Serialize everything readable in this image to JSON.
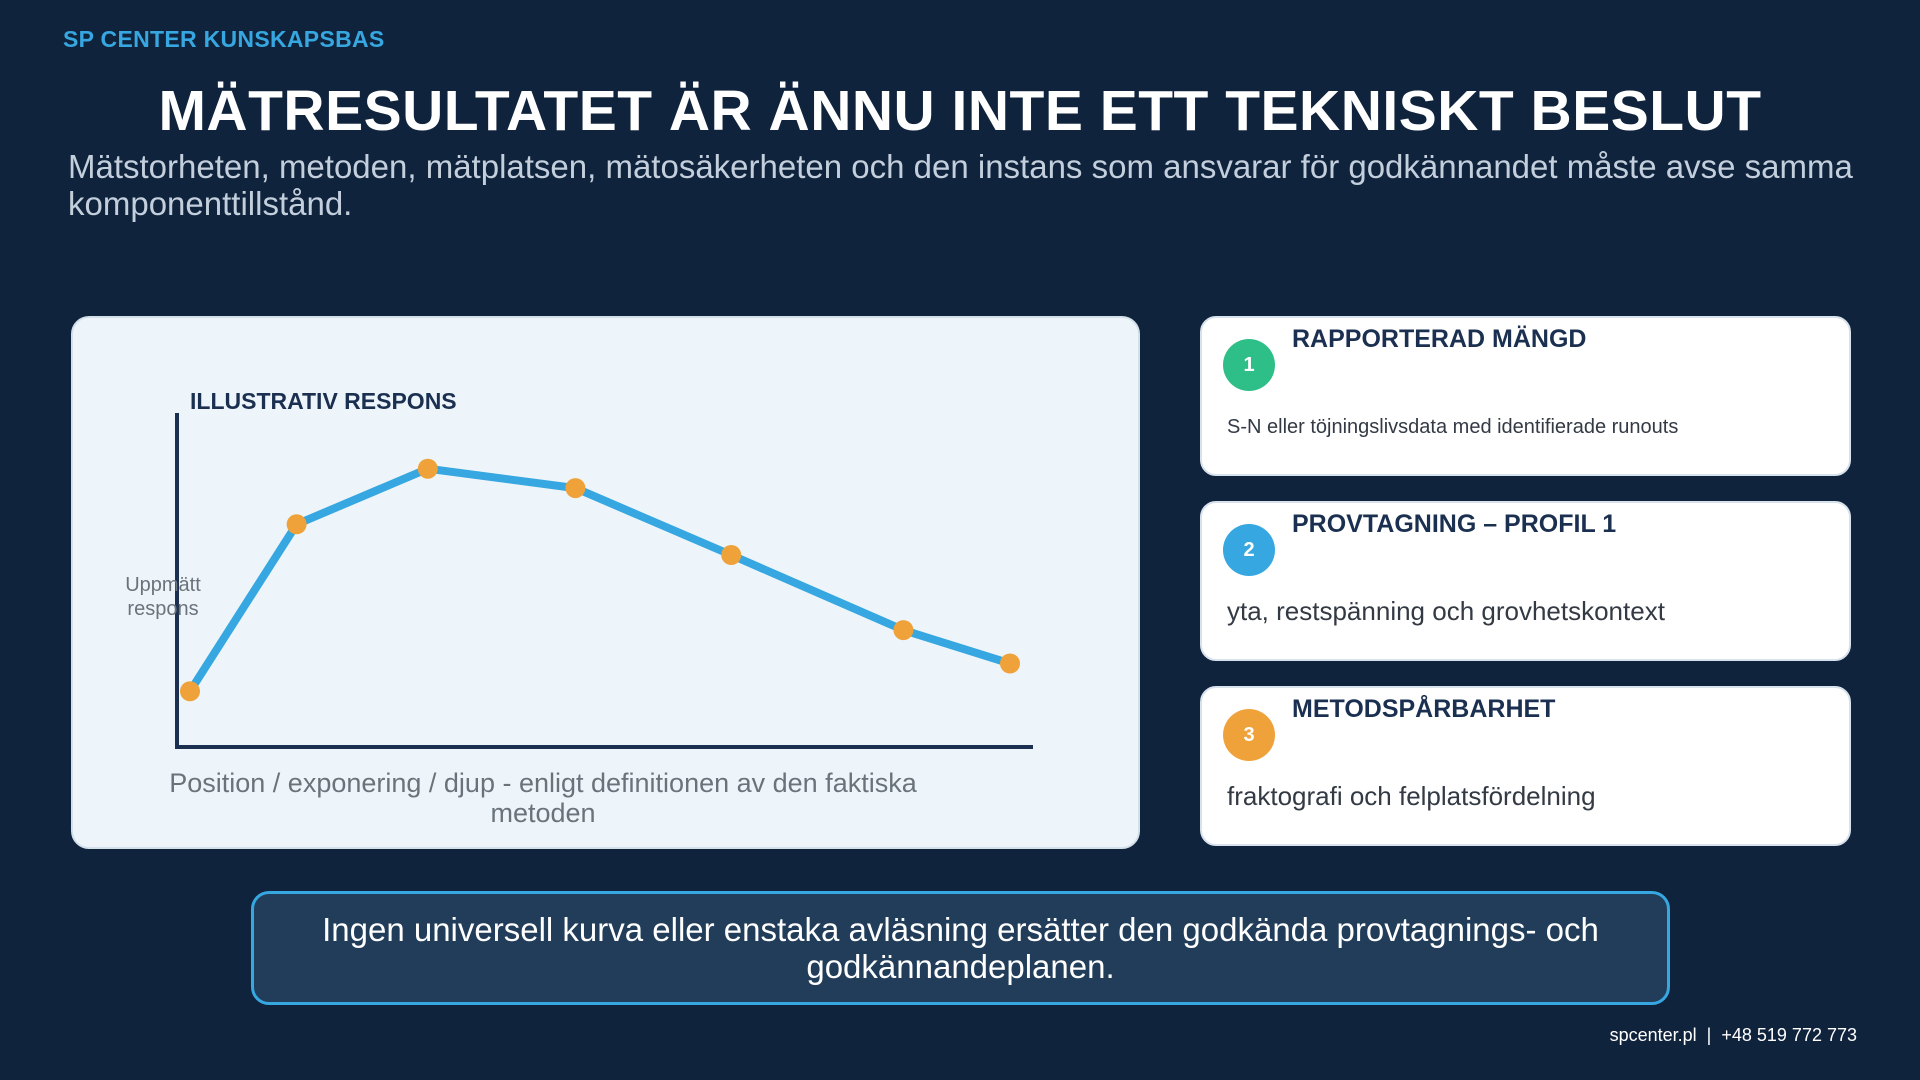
{
  "brand": "SP CENTER KUNSKAPSBAS",
  "title": "MÄTRESULTATET ÄR ÄNNU INTE ETT TEKNISKT BESLUT",
  "subtitle": "Mätstorheten, metoden, mätplatsen, mätosäkerheten och den instans som ansvarar för godkännandet måste avse samma komponenttillstånd.",
  "colors": {
    "background": "#10233c",
    "accent": "#36a7e0",
    "line": "#36a7e0",
    "marker": "#f0a23a",
    "badge_1": "#2ebf88",
    "badge_2": "#36a7e0",
    "badge_3": "#f0a23a"
  },
  "chart_data": {
    "type": "line",
    "title": "ILLUSTRATIV RESPONS",
    "ylabel": "Uppmätt respons",
    "xlabel": "Position / exponering / djup - enligt definitionen av den faktiska metoden",
    "x": [
      0,
      0.13,
      0.29,
      0.47,
      0.66,
      0.87,
      1.0
    ],
    "y": [
      0.2,
      0.8,
      1.0,
      0.93,
      0.69,
      0.42,
      0.3
    ],
    "xlim": [
      0,
      1
    ],
    "ylim": [
      0,
      1.2
    ],
    "grid": false,
    "axis_ticks": false
  },
  "cards": [
    {
      "number": "1",
      "title": "RAPPORTERAD MÄNGD",
      "text": "S-N eller töjningslivsdata med identifierade runouts",
      "color": "#2ebf88"
    },
    {
      "number": "2",
      "title": "PROVTAGNING – PROFIL 1",
      "text": "yta, restspänning och grovhetskontext",
      "color": "#36a7e0"
    },
    {
      "number": "3",
      "title": "METODSPÅRBARHET",
      "text": "fraktografi och felplatsfördelning",
      "color": "#f0a23a"
    }
  ],
  "note": "Ingen universell kurva eller enstaka avläsning ersätter den godkända provtagnings- och godkännandeplanen.",
  "footer": {
    "website": "spcenter.pl",
    "separator": "|",
    "phone": "+48 519 772 773"
  }
}
